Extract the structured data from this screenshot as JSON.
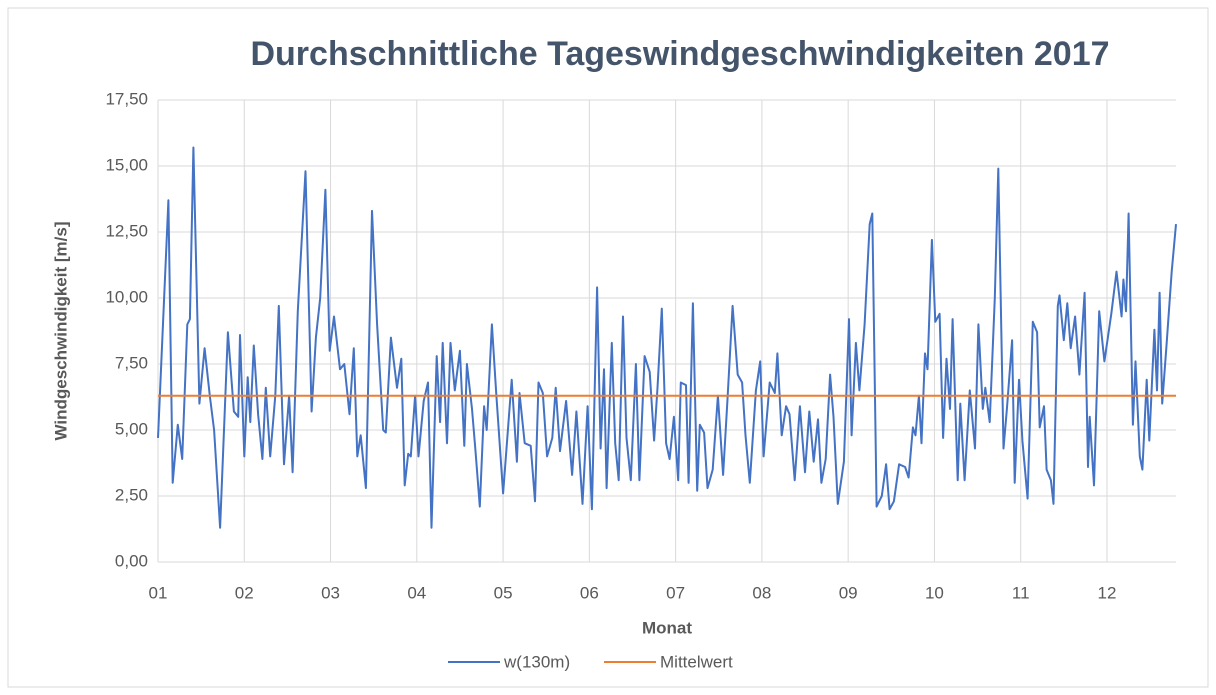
{
  "chart_data": {
    "type": "line",
    "title": "Durchschnittliche Tageswindgeschwindigkeiten 2017",
    "xlabel": "Monat",
    "ylabel": "Windgeschwindigkeit [m/s]",
    "xlim": [
      1,
      12.8
    ],
    "xticks": [
      {
        "value": 1,
        "label": "01"
      },
      {
        "value": 2,
        "label": "02"
      },
      {
        "value": 3,
        "label": "03"
      },
      {
        "value": 4,
        "label": "04"
      },
      {
        "value": 5,
        "label": "05"
      },
      {
        "value": 6,
        "label": "06"
      },
      {
        "value": 7,
        "label": "07"
      },
      {
        "value": 8,
        "label": "08"
      },
      {
        "value": 9,
        "label": "09"
      },
      {
        "value": 10,
        "label": "10"
      },
      {
        "value": 11,
        "label": "11"
      },
      {
        "value": 12,
        "label": "12"
      }
    ],
    "ylim": [
      0,
      17.5
    ],
    "yticks": [
      {
        "value": 0,
        "label": "0,00"
      },
      {
        "value": 2.5,
        "label": "2,50"
      },
      {
        "value": 5,
        "label": "5,00"
      },
      {
        "value": 7.5,
        "label": "7,50"
      },
      {
        "value": 10,
        "label": "10,00"
      },
      {
        "value": 12.5,
        "label": "12,50"
      },
      {
        "value": 15,
        "label": "15,00"
      },
      {
        "value": 17.5,
        "label": "17,50"
      }
    ],
    "grid": true,
    "legend": "bottom",
    "series": [
      {
        "name": "w(130m)",
        "color": "#4472c4",
        "x": [
          1.0,
          1.12,
          1.17,
          1.23,
          1.28,
          1.34,
          1.37,
          1.41,
          1.48,
          1.54,
          1.6,
          1.65,
          1.72,
          1.81,
          1.88,
          1.93,
          1.95,
          2.0,
          2.04,
          2.07,
          2.11,
          2.16,
          2.21,
          2.25,
          2.3,
          2.36,
          2.4,
          2.46,
          2.52,
          2.56,
          2.62,
          2.71,
          2.78,
          2.83,
          2.88,
          2.94,
          2.99,
          3.04,
          3.11,
          3.16,
          3.22,
          3.27,
          3.31,
          3.35,
          3.41,
          3.48,
          3.54,
          3.61,
          3.64,
          3.7,
          3.77,
          3.82,
          3.86,
          3.9,
          3.93,
          3.98,
          4.02,
          4.08,
          4.13,
          4.17,
          4.23,
          4.27,
          4.3,
          4.35,
          4.39,
          4.44,
          4.5,
          4.55,
          4.58,
          4.64,
          4.68,
          4.73,
          4.78,
          4.81,
          4.87,
          4.92,
          5.0,
          5.06,
          5.1,
          5.16,
          5.19,
          5.25,
          5.32,
          5.37,
          5.41,
          5.46,
          5.51,
          5.57,
          5.61,
          5.66,
          5.73,
          5.8,
          5.85,
          5.92,
          5.98,
          6.03,
          6.09,
          6.13,
          6.17,
          6.2,
          6.26,
          6.3,
          6.34,
          6.39,
          6.43,
          6.48,
          6.54,
          6.58,
          6.64,
          6.7,
          6.75,
          6.79,
          6.84,
          6.89,
          6.93,
          6.98,
          7.03,
          7.06,
          7.12,
          7.15,
          7.2,
          7.25,
          7.28,
          7.33,
          7.37,
          7.43,
          7.49,
          7.55,
          7.6,
          7.66,
          7.72,
          7.77,
          7.81,
          7.86,
          7.93,
          7.98,
          8.02,
          8.09,
          8.15,
          8.18,
          8.23,
          8.28,
          8.32,
          8.38,
          8.44,
          8.5,
          8.55,
          8.6,
          8.65,
          8.69,
          8.74,
          8.79,
          8.83,
          8.88,
          8.95,
          9.01,
          9.04,
          9.09,
          9.13,
          9.19,
          9.25,
          9.28,
          9.33,
          9.39,
          9.44,
          9.48,
          9.53,
          9.59,
          9.66,
          9.7,
          9.75,
          9.78,
          9.82,
          9.85,
          9.89,
          9.92,
          9.97,
          10.01,
          10.06,
          10.1,
          10.14,
          10.18,
          10.21,
          10.27,
          10.3,
          10.35,
          10.41,
          10.47,
          10.51,
          10.56,
          10.59,
          10.64,
          10.7,
          10.74,
          10.8,
          10.84,
          10.9,
          10.93,
          10.98,
          11.02,
          11.08,
          11.14,
          11.19,
          11.22,
          11.27,
          11.3,
          11.35,
          11.38,
          11.43,
          11.45,
          11.5,
          11.54,
          11.58,
          11.63,
          11.68,
          11.74,
          11.78,
          11.8,
          11.85,
          11.91,
          11.97,
          12.05,
          12.11,
          12.17,
          12.19,
          12.22,
          12.25,
          12.3,
          12.33,
          12.38,
          12.41,
          12.46,
          12.49,
          12.55,
          12.58,
          12.61,
          12.64,
          12.69,
          12.75,
          12.8
        ],
        "values": [
          4.7,
          13.7,
          3.0,
          5.2,
          3.9,
          9.0,
          9.2,
          15.7,
          6.0,
          8.1,
          6.3,
          5.0,
          1.3,
          8.7,
          5.7,
          5.5,
          8.6,
          4.0,
          7.0,
          5.3,
          8.2,
          5.6,
          3.9,
          6.6,
          4.0,
          6.3,
          9.7,
          3.7,
          6.3,
          3.4,
          9.5,
          14.8,
          5.7,
          8.5,
          10.0,
          14.1,
          8.0,
          9.3,
          7.3,
          7.5,
          5.6,
          8.1,
          4.0,
          4.8,
          2.8,
          13.3,
          9.0,
          5.0,
          4.9,
          8.5,
          6.6,
          7.7,
          2.9,
          4.1,
          4.0,
          6.3,
          4.0,
          6.1,
          6.8,
          1.3,
          7.8,
          5.3,
          8.3,
          4.5,
          8.3,
          6.5,
          8.0,
          4.4,
          7.5,
          5.8,
          4.2,
          2.1,
          5.9,
          5.0,
          9.0,
          6.4,
          2.6,
          5.2,
          6.9,
          3.8,
          6.4,
          4.5,
          4.4,
          2.3,
          6.8,
          6.4,
          4.0,
          4.7,
          6.6,
          4.2,
          6.1,
          3.3,
          5.7,
          2.2,
          5.9,
          2.0,
          10.4,
          4.3,
          7.3,
          2.8,
          8.3,
          4.5,
          3.1,
          9.3,
          4.7,
          3.1,
          7.5,
          3.1,
          7.8,
          7.2,
          4.6,
          6.6,
          9.6,
          4.5,
          3.9,
          5.5,
          3.1,
          6.8,
          6.7,
          3.0,
          9.8,
          2.7,
          5.2,
          4.9,
          2.8,
          3.5,
          6.3,
          3.3,
          6.1,
          9.7,
          7.1,
          6.8,
          4.8,
          3.0,
          6.5,
          7.6,
          4.0,
          6.8,
          6.4,
          7.9,
          4.8,
          5.9,
          5.6,
          3.1,
          5.9,
          3.4,
          5.7,
          3.8,
          5.4,
          3.0,
          3.9,
          7.1,
          5.5,
          2.2,
          3.8,
          9.2,
          4.8,
          8.3,
          6.5,
          9.0,
          12.8,
          13.2,
          2.1,
          2.5,
          3.7,
          2.0,
          2.3,
          3.7,
          3.6,
          3.2,
          5.1,
          4.8,
          6.3,
          4.5,
          7.9,
          7.3,
          12.2,
          9.1,
          9.4,
          4.7,
          7.7,
          5.8,
          9.2,
          3.1,
          6.0,
          3.1,
          6.5,
          4.3,
          9.0,
          5.8,
          6.6,
          5.3,
          10.0,
          14.9,
          4.3,
          5.8,
          8.4,
          3.0,
          6.9,
          4.6,
          2.4,
          9.1,
          8.7,
          5.1,
          5.9,
          3.5,
          3.1,
          2.2,
          9.7,
          10.1,
          8.4,
          9.8,
          8.1,
          9.3,
          7.1,
          10.2,
          3.6,
          5.5,
          2.9,
          9.5,
          7.6,
          9.4,
          11.0,
          9.3,
          10.7,
          9.5,
          13.2,
          5.2,
          7.6,
          4.0,
          3.5,
          6.9,
          4.6,
          8.8,
          6.5,
          10.2,
          6.0,
          8.2,
          11.0,
          12.8
        ]
      },
      {
        "name": "Mittelwert",
        "color": "#ed7d31",
        "x": [
          1,
          12.8
        ],
        "values": [
          6.3,
          6.3
        ]
      }
    ]
  }
}
